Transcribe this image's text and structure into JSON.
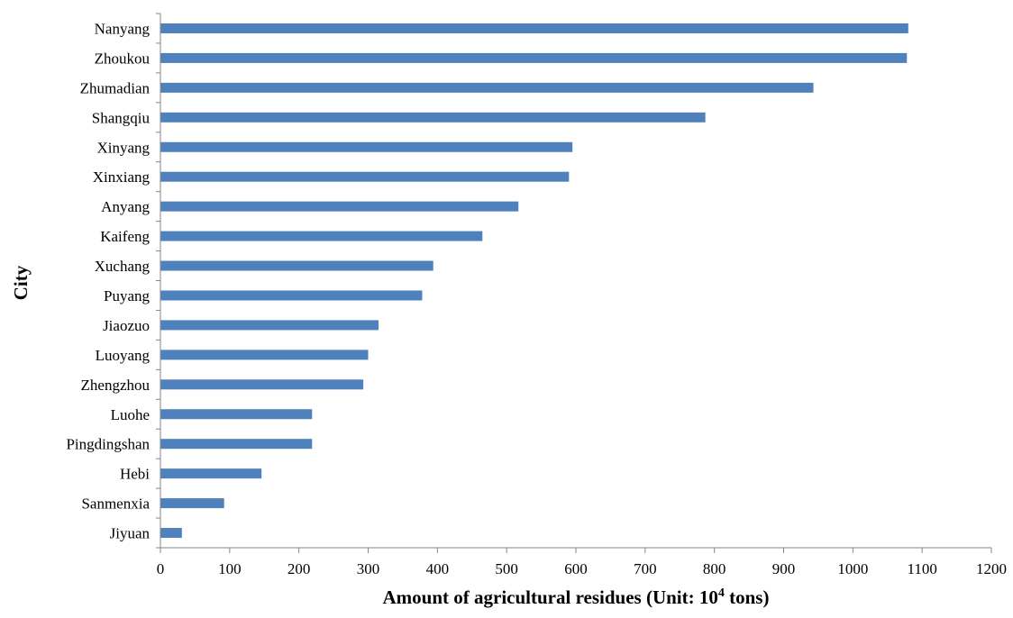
{
  "chart_data": {
    "type": "bar",
    "orientation": "horizontal",
    "title": "",
    "xlabel_main": "Amount of agricultural residues (Unit: 10",
    "xlabel_sup": "4",
    "xlabel_tail": " tons)",
    "ylabel": "City",
    "xlim": [
      0,
      1200
    ],
    "xticks": [
      0,
      100,
      200,
      300,
      400,
      500,
      600,
      700,
      800,
      900,
      1000,
      1100,
      1200
    ],
    "grid": false,
    "legend": "none",
    "categories": [
      "Nanyang",
      "Zhoukou",
      "Zhumadian",
      "Shangqiu",
      "Xinyang",
      "Xinxiang",
      "Anyang",
      "Kaifeng",
      "Xuchang",
      "Puyang",
      "Jiaozuo",
      "Luoyang",
      "Zhengzhou",
      "Luohe",
      "Pingdingshan",
      "Hebi",
      "Sanmenxia",
      "Jiyuan"
    ],
    "values": [
      1080,
      1078,
      943,
      787,
      595,
      590,
      517,
      465,
      394,
      378,
      315,
      300,
      293,
      219,
      219,
      146,
      92,
      31
    ],
    "colors": {
      "bar": "#4f81bd",
      "axis": "#868686"
    }
  }
}
